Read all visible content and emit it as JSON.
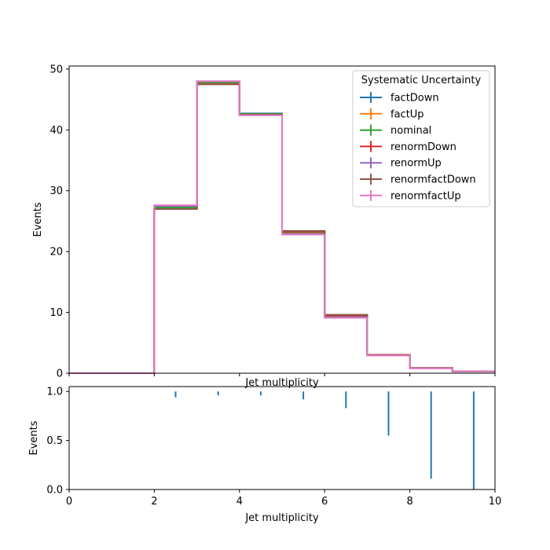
{
  "chart_data": [
    {
      "type": "step",
      "panel": "main",
      "ylabel": "Events",
      "xlabel": "Jet multiplicity",
      "xlim": [
        0,
        10
      ],
      "ylim": [
        0,
        50.5
      ],
      "yticks": [
        0,
        10,
        20,
        30,
        40,
        50
      ],
      "bin_edges": [
        0,
        1,
        2,
        3,
        4,
        5,
        6,
        7,
        8,
        9,
        10
      ],
      "legend": {
        "title": "Systematic Uncertainty",
        "placement": "top-right"
      },
      "series": [
        {
          "name": "factDown",
          "color": "#1f77b4",
          "values": [
            0,
            0,
            27.3,
            47.8,
            42.7,
            23.2,
            9.5,
            3.0,
            0.85,
            0.3
          ]
        },
        {
          "name": "factUp",
          "color": "#ff7f0e",
          "values": [
            0,
            0,
            27.2,
            47.7,
            42.6,
            23.1,
            9.4,
            3.0,
            0.85,
            0.3
          ]
        },
        {
          "name": "nominal",
          "color": "#2ca02c",
          "values": [
            0,
            0,
            27.2,
            47.8,
            42.6,
            23.2,
            9.4,
            3.0,
            0.85,
            0.3
          ]
        },
        {
          "name": "renormDown",
          "color": "#d62728",
          "values": [
            0,
            0,
            27.0,
            47.5,
            42.5,
            23.3,
            9.5,
            3.0,
            0.85,
            0.3
          ]
        },
        {
          "name": "renormUp",
          "color": "#9467bd",
          "values": [
            0,
            0,
            27.5,
            48.0,
            42.5,
            22.9,
            9.2,
            2.9,
            0.8,
            0.3
          ]
        },
        {
          "name": "renormfactDown",
          "color": "#8c564b",
          "values": [
            0,
            0,
            27.0,
            47.5,
            42.5,
            23.4,
            9.6,
            3.0,
            0.85,
            0.3
          ]
        },
        {
          "name": "renormfactUp",
          "color": "#e377c2",
          "values": [
            0,
            0,
            27.6,
            48.0,
            42.4,
            22.8,
            9.1,
            2.9,
            0.8,
            0.3
          ]
        }
      ]
    },
    {
      "type": "errorbar",
      "panel": "ratio",
      "ylabel": "Events",
      "xlabel": "Jet multiplicity",
      "xlim": [
        0,
        10
      ],
      "ylim": [
        0,
        1.05
      ],
      "xticks": [
        0,
        2,
        4,
        6,
        8,
        10
      ],
      "yticks": [
        0.0,
        0.5,
        1.0
      ],
      "ytick_labels": [
        "0.0",
        "0.5",
        "1.0"
      ],
      "color": "#1f77b4",
      "points": [
        {
          "x": 2.5,
          "low": 0.94,
          "high": 1.0
        },
        {
          "x": 3.5,
          "low": 0.96,
          "high": 1.0
        },
        {
          "x": 4.5,
          "low": 0.96,
          "high": 1.0
        },
        {
          "x": 5.5,
          "low": 0.92,
          "high": 1.0
        },
        {
          "x": 6.5,
          "low": 0.83,
          "high": 1.0
        },
        {
          "x": 7.5,
          "low": 0.55,
          "high": 1.0
        },
        {
          "x": 8.5,
          "low": 0.11,
          "high": 1.0
        },
        {
          "x": 9.5,
          "low": 0.0,
          "high": 1.0
        }
      ]
    }
  ]
}
